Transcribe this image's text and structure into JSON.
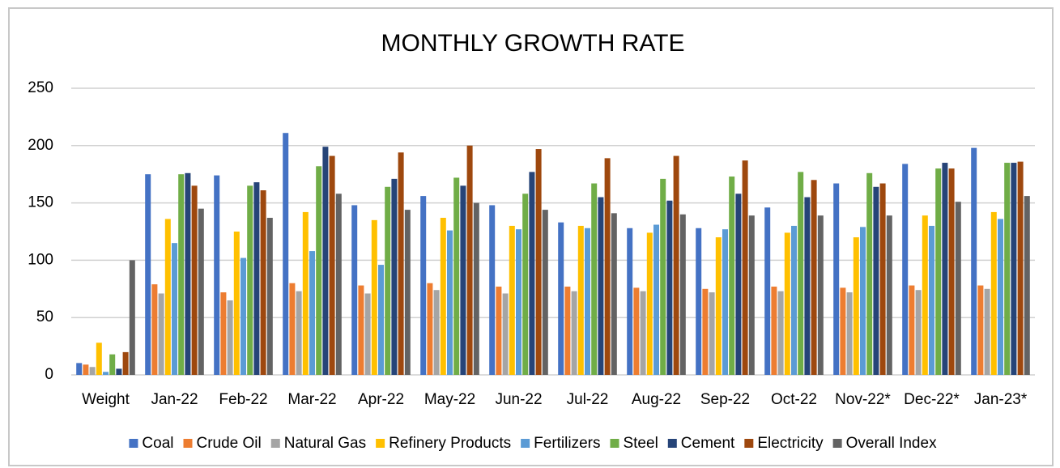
{
  "chart_data": {
    "type": "bar",
    "title": "MONTHLY GROWTH RATE",
    "categories": [
      "Weight",
      "Jan-22",
      "Feb-22",
      "Mar-22",
      "Apr-22",
      "May-22",
      "Jun-22",
      "Jul-22",
      "Aug-22",
      "Sep-22",
      "Oct-22",
      "Nov-22*",
      "Dec-22*",
      "Jan-23*"
    ],
    "series": [
      {
        "name": "Coal",
        "color": "#4472c4",
        "values": [
          10.33,
          175,
          174,
          211,
          148,
          156,
          148,
          133,
          128,
          128,
          146,
          167,
          184,
          198
        ]
      },
      {
        "name": "Crude Oil",
        "color": "#ed7d31",
        "values": [
          8.98,
          79,
          72,
          80,
          78,
          80,
          77,
          77,
          76,
          75,
          77,
          76,
          78,
          78
        ]
      },
      {
        "name": "Natural Gas",
        "color": "#a5a5a5",
        "values": [
          6.88,
          71,
          65,
          73,
          71,
          74,
          71,
          73,
          73,
          72,
          73,
          72,
          74,
          75
        ]
      },
      {
        "name": "Refinery Products",
        "color": "#ffc000",
        "values": [
          28.04,
          136,
          125,
          142,
          135,
          137,
          130,
          130,
          124,
          120,
          124,
          120,
          139,
          142
        ]
      },
      {
        "name": "Fertilizers",
        "color": "#5b9bd5",
        "values": [
          2.63,
          115,
          102,
          108,
          96,
          126,
          127,
          128,
          131,
          127,
          130,
          129,
          130,
          136
        ]
      },
      {
        "name": "Steel",
        "color": "#70ad47",
        "values": [
          17.92,
          175,
          165,
          182,
          164,
          172,
          158,
          167,
          171,
          173,
          177,
          176,
          180,
          185
        ]
      },
      {
        "name": "Cement",
        "color": "#264478",
        "values": [
          5.37,
          176,
          168,
          199,
          171,
          165,
          177,
          155,
          152,
          158,
          155,
          164,
          185,
          185
        ]
      },
      {
        "name": "Electricity",
        "color": "#9e480e",
        "values": [
          19.85,
          165,
          161,
          191,
          194,
          200,
          197,
          189,
          191,
          187,
          170,
          167,
          180,
          186
        ]
      },
      {
        "name": "Overall Index",
        "color": "#636363",
        "values": [
          100,
          145,
          137,
          158,
          144,
          150,
          144,
          141,
          140,
          139,
          139,
          139,
          151,
          156
        ]
      }
    ],
    "ylim": [
      0,
      250
    ],
    "yticks": [
      0,
      50,
      100,
      150,
      200,
      250
    ],
    "grid": true,
    "legend": "bottom"
  }
}
